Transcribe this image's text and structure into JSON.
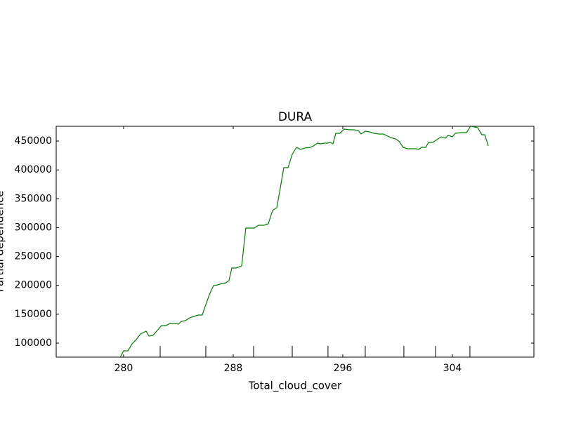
{
  "chart_data": {
    "type": "line",
    "title": "DURA",
    "xlabel": "Total_cloud_cover",
    "ylabel": "Partial dependence",
    "x": [
      279.59,
      280.0,
      280.31,
      280.62,
      280.92,
      281.23,
      281.64,
      281.85,
      282.15,
      282.46,
      282.77,
      283.08,
      283.38,
      283.69,
      284.0,
      284.21,
      284.51,
      284.82,
      285.13,
      285.44,
      285.74,
      285.95,
      286.26,
      286.56,
      286.87,
      287.18,
      287.38,
      287.69,
      287.9,
      288.21,
      288.62,
      288.92,
      289.23,
      289.54,
      289.85,
      290.26,
      290.56,
      290.87,
      291.18,
      291.49,
      291.69,
      292.0,
      292.31,
      292.62,
      292.92,
      293.23,
      293.64,
      293.85,
      294.15,
      294.36,
      294.67,
      294.87,
      295.08,
      295.28,
      295.49,
      295.79,
      296.1,
      296.51,
      296.82,
      297.13,
      297.33,
      297.64,
      297.95,
      298.26,
      298.67,
      298.97,
      299.28,
      299.59,
      299.9,
      300.1,
      300.41,
      300.72,
      301.03,
      301.33,
      301.54,
      301.74,
      302.05,
      302.26,
      302.56,
      302.87,
      303.18,
      303.49,
      303.69,
      304.0,
      304.21,
      304.62,
      305.03,
      305.33,
      305.64,
      305.85,
      306.15,
      306.36,
      306.62
    ],
    "series": [
      {
        "color": "#008000",
        "values": [
          68400,
          86630,
          86630,
          98780,
          106080,
          115800,
          120660,
          112150,
          113370,
          121880,
          130380,
          130380,
          134030,
          134030,
          132810,
          137670,
          138890,
          143750,
          146180,
          148610,
          148610,
          163200,
          183860,
          199650,
          200870,
          203300,
          203300,
          208160,
          230040,
          230040,
          233680,
          299310,
          299310,
          299310,
          304170,
          304170,
          306600,
          329690,
          334550,
          375870,
          403830,
          403830,
          426920,
          439070,
          435430,
          437860,
          439070,
          441500,
          446360,
          445150,
          446360,
          446360,
          447580,
          445150,
          463370,
          463370,
          470660,
          469450,
          469450,
          468230,
          462160,
          467020,
          465800,
          463370,
          462160,
          462160,
          458360,
          455320,
          453050,
          449580,
          439070,
          436640,
          436640,
          436640,
          435430,
          439070,
          439070,
          447580,
          447580,
          452440,
          457300,
          454870,
          459730,
          457300,
          463370,
          464590,
          464590,
          475530,
          474310,
          473100,
          460950,
          460950,
          441500
        ]
      }
    ],
    "deciles": [
      282.67,
      286.0,
      289.49,
      292.31,
      294.92,
      297.64,
      300.46,
      302.77,
      305.28
    ],
    "xlim": [
      275.08,
      309.95
    ],
    "ylim": [
      75700,
      475500
    ],
    "xticks": [
      280,
      288,
      296,
      304
    ],
    "yticks": [
      100000,
      150000,
      200000,
      250000,
      300000,
      350000,
      400000,
      450000
    ]
  }
}
